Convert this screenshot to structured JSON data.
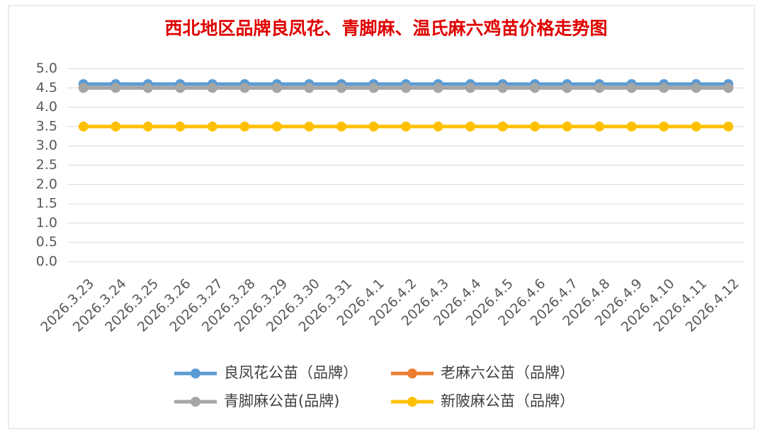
{
  "chart_data": {
    "type": "line",
    "title": "西北地区品牌良凤花、青脚麻、温氏麻六鸡苗价格走势图",
    "categories": [
      "2026.3.23",
      "2026.3.24",
      "2026.3.25",
      "2026.3.26",
      "2026.3.27",
      "2026.3.28",
      "2026.3.29",
      "2026.3.30",
      "2026.3.31",
      "2026.4.1",
      "2026.4.2",
      "2026.4.3",
      "2026.4.4",
      "2026.4.5",
      "2026.4.6",
      "2026.4.7",
      "2026.4.8",
      "2026.4.9",
      "2026.4.10",
      "2026.4.11",
      "2026.4.12"
    ],
    "series": [
      {
        "name": "良凤花公苗（品牌）",
        "color": "#5b9bd5",
        "values": [
          4.6,
          4.6,
          4.6,
          4.6,
          4.6,
          4.6,
          4.6,
          4.6,
          4.6,
          4.6,
          4.6,
          4.6,
          4.6,
          4.6,
          4.6,
          4.6,
          4.6,
          4.6,
          4.6,
          4.6,
          4.6
        ]
      },
      {
        "name": "老麻六公苗（品牌）",
        "color": "#ed7d31",
        "values": [
          4.5,
          4.5,
          4.5,
          4.5,
          4.5,
          4.5,
          4.5,
          4.5,
          4.5,
          4.5,
          4.5,
          4.5,
          4.5,
          4.5,
          4.5,
          4.5,
          4.5,
          4.5,
          4.5,
          4.5,
          4.5
        ]
      },
      {
        "name": "青脚麻公苗(品牌)",
        "color": "#a5a5a5",
        "values": [
          4.5,
          4.5,
          4.5,
          4.5,
          4.5,
          4.5,
          4.5,
          4.5,
          4.5,
          4.5,
          4.5,
          4.5,
          4.5,
          4.5,
          4.5,
          4.5,
          4.5,
          4.5,
          4.5,
          4.5,
          4.5
        ]
      },
      {
        "name": "新陂麻公苗（品牌）",
        "color": "#ffc000",
        "values": [
          3.5,
          3.5,
          3.5,
          3.5,
          3.5,
          3.5,
          3.5,
          3.5,
          3.5,
          3.5,
          3.5,
          3.5,
          3.5,
          3.5,
          3.5,
          3.5,
          3.5,
          3.5,
          3.5,
          3.5,
          3.5
        ]
      }
    ],
    "ylim": [
      0,
      5
    ],
    "yticks": [
      {
        "value": 0,
        "label": "0.0"
      },
      0.5,
      {
        "value": 1,
        "label": "1.0"
      },
      1.5,
      {
        "value": 2,
        "label": "2.0"
      },
      2.5,
      {
        "value": 3,
        "label": "3.0"
      },
      3.5,
      {
        "value": 4,
        "label": "4.0"
      },
      4.5,
      {
        "value": 5,
        "label": "5.0"
      }
    ],
    "grid": true,
    "legend": "bottom"
  }
}
